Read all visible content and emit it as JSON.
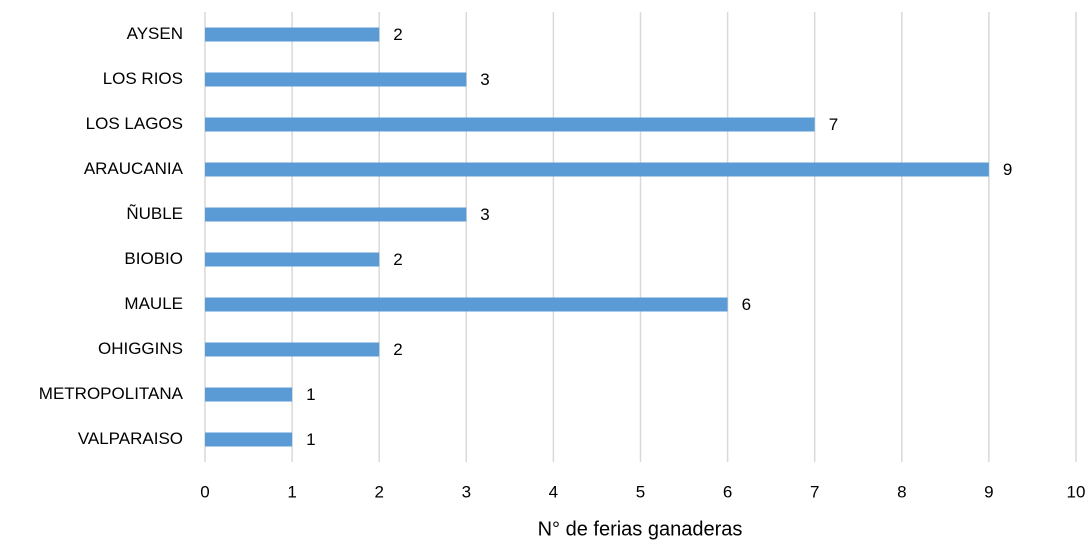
{
  "chart_data": {
    "type": "bar",
    "orientation": "horizontal",
    "categories": [
      "AYSEN",
      "LOS RIOS",
      "LOS LAGOS",
      "ARAUCANIA",
      "ÑUBLE",
      "BIOBIO",
      "MAULE",
      "OHIGGINS",
      "METROPOLITANA",
      "VALPARAISO"
    ],
    "values": [
      2,
      3,
      7,
      9,
      3,
      2,
      6,
      2,
      1,
      1
    ],
    "color": "#5b9bd5",
    "x_label": "N° de ferias ganaderas",
    "xlim": [
      0,
      10
    ],
    "xticks": [
      0,
      1,
      2,
      3,
      4,
      5,
      6,
      7,
      8,
      9,
      10
    ],
    "grid": true
  }
}
